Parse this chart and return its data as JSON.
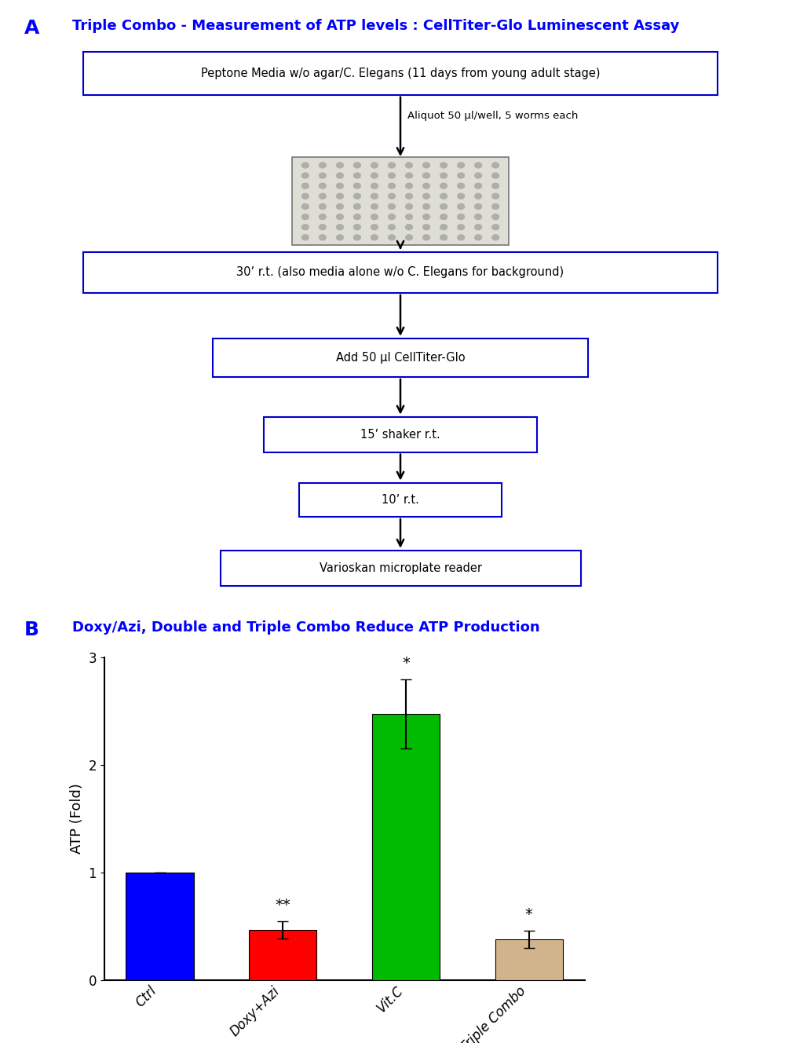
{
  "title_A": "Triple Combo - Measurement of ATP levels : CellTiter-Glo Luminescent Assay",
  "title_B": "Doxy/Azi, Double and Triple Combo Reduce ATP Production",
  "label_A": "A",
  "label_B": "B",
  "title_color": "#0000FF",
  "label_color": "#0000FF",
  "flowchart_boxes": [
    "Peptone Media w/o agar/C. Elegans (11 days from young adult stage)",
    "30’ r.t. (also media alone w/o C. Elegans for background)",
    "Add 50 μl CellTiter-Glo",
    "15’ shaker r.t.",
    "10’ r.t.",
    "Varioskan microplate reader"
  ],
  "arrow_label": "Aliquot 50 μl/well, 5 worms each",
  "bar_categories": [
    "Ctrl",
    "Doxy+Azi",
    "Vit.C",
    "Triple Combo"
  ],
  "bar_values": [
    1.0,
    0.47,
    2.47,
    0.38
  ],
  "bar_errors": [
    0.0,
    0.08,
    0.32,
    0.08
  ],
  "bar_colors": [
    "#0000FF",
    "#FF0000",
    "#00BB00",
    "#D2B48C"
  ],
  "ylabel": "ATP (Fold)",
  "ylim": [
    0,
    3.0
  ],
  "yticks": [
    0,
    1,
    2,
    3
  ],
  "significance": [
    "",
    "**",
    "*",
    "*"
  ],
  "sig_color": "#000000",
  "box_edge_color": "#0000CD",
  "box_face_color": "#FFFFFF",
  "box_text_color": "#000000",
  "background_color": "#FFFFFF"
}
